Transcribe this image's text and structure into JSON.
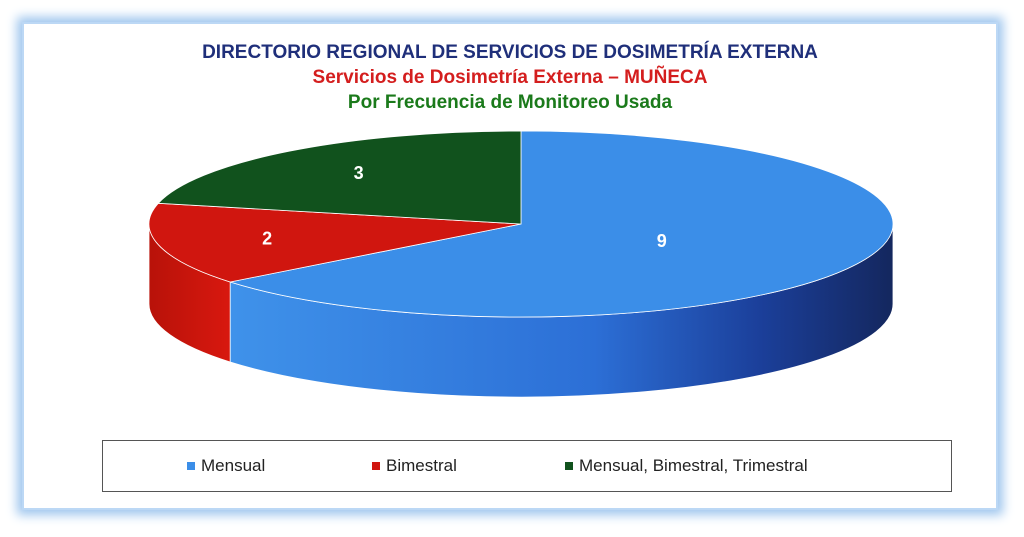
{
  "chart_data": {
    "type": "pie",
    "title": "DIRECTORIO REGIONAL DE SERVICIOS DE DOSIMETRÍA EXTERNA",
    "subtitle": "Servicios de Dosimetría Externa –  MUÑECA",
    "subtitle2": "Por Frecuencia de Monitoreo Usada",
    "legend_position": "bottom",
    "slices": [
      {
        "label": "Mensual",
        "value": 9,
        "color": "#3b8ee8",
        "label_text": "9"
      },
      {
        "label": "Bimestral",
        "value": 2,
        "color": "#d0160f",
        "label_text": "2"
      },
      {
        "label": "Mensual, Bimestral, Trimestral",
        "value": 3,
        "color": "#11521d",
        "label_text": "3"
      }
    ]
  }
}
